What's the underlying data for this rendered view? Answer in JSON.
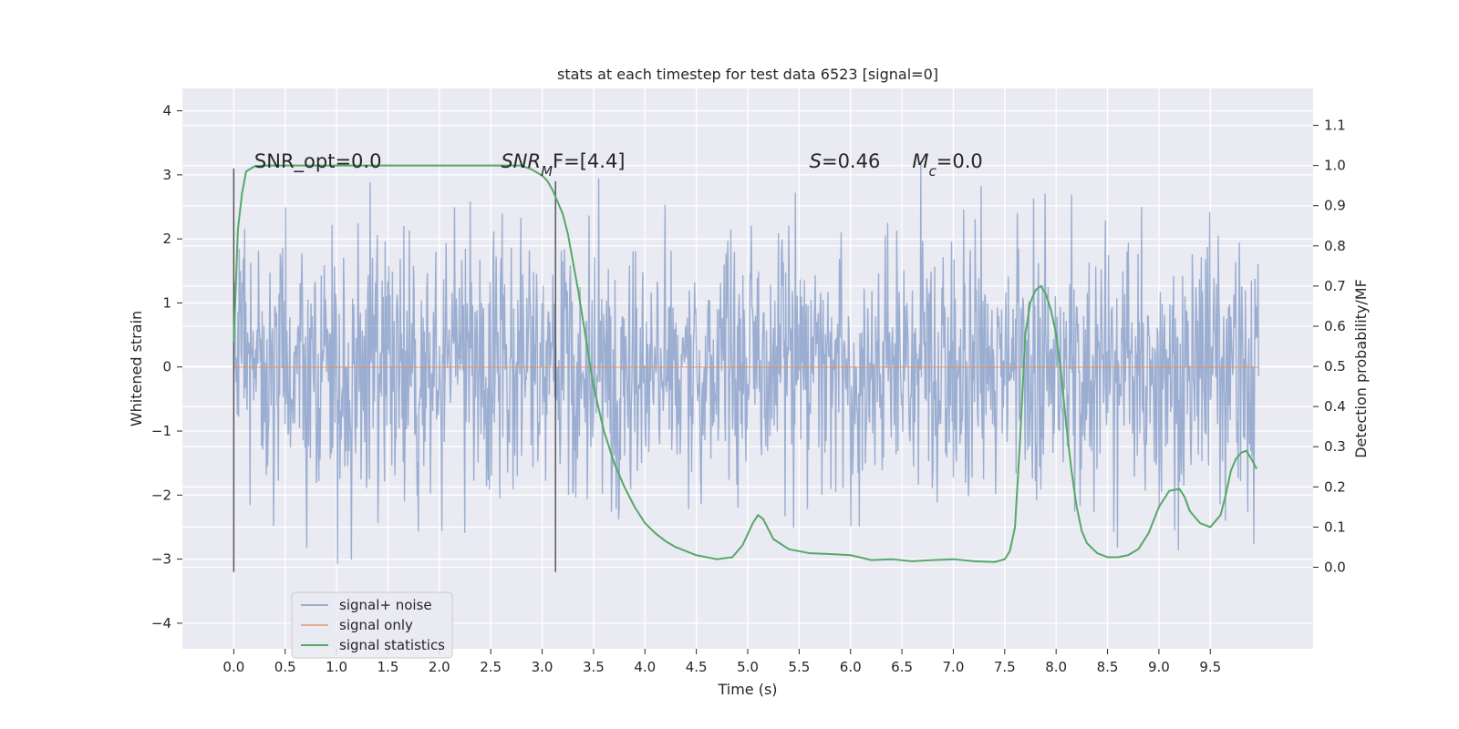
{
  "chart_data": {
    "type": "line",
    "title": "stats at each timestep for test data 6523 [signal=0]",
    "xlabel": "Time (s)",
    "ylabel": "Whitened strain",
    "y2label": "Detection probability/MF",
    "xlim": [
      -0.5,
      10.5
    ],
    "ylim": [
      -4.4,
      4.35
    ],
    "y2lim": [
      -0.203,
      1.192
    ],
    "x_ticks": [
      0.0,
      0.5,
      1.0,
      1.5,
      2.0,
      2.5,
      3.0,
      3.5,
      4.0,
      4.5,
      5.0,
      5.5,
      6.0,
      6.5,
      7.0,
      7.5,
      8.0,
      8.5,
      9.0,
      9.5
    ],
    "x_tick_labels": [
      "0.0",
      "0.5",
      "1.0",
      "1.5",
      "2.0",
      "2.5",
      "3.0",
      "3.5",
      "4.0",
      "4.5",
      "5.0",
      "5.5",
      "6.0",
      "6.5",
      "7.0",
      "7.5",
      "8.0",
      "8.5",
      "9.0",
      "9.5"
    ],
    "y_ticks": [
      -4,
      -3,
      -2,
      -1,
      0,
      1,
      2,
      3,
      4
    ],
    "y_tick_labels": [
      "−4",
      "−3",
      "−2",
      "−1",
      "0",
      "1",
      "2",
      "3",
      "4"
    ],
    "y2_ticks": [
      0.0,
      0.1,
      0.2,
      0.3,
      0.4,
      0.5,
      0.6,
      0.7,
      0.8,
      0.9,
      1.0,
      1.1
    ],
    "y2_tick_labels": [
      "0.0",
      "0.1",
      "0.2",
      "0.3",
      "0.4",
      "0.5",
      "0.6",
      "0.7",
      "0.8",
      "0.9",
      "1.0",
      "1.1"
    ],
    "grid": true,
    "legend_position": "lower-left",
    "colors": {
      "background": "#eaeaf2",
      "grid": "#ffffff",
      "noise": "#4c72b0",
      "signal": "#dd8452",
      "stats": "#55a868",
      "vline": "#4d4d4d"
    },
    "annotations": [
      {
        "text": "SNR_opt=0.0",
        "x": 0.2,
        "y2": 0.995
      },
      {
        "text": "SNR",
        "sub": "M",
        "suffix": "F=[4.4]",
        "italic": true,
        "x": 2.6,
        "y2": 0.995
      },
      {
        "text": "S",
        "suffix": "=0.46",
        "italic": true,
        "x": 5.6,
        "y2": 0.995
      },
      {
        "text": "M",
        "sub": "c",
        "suffix": "=0.0",
        "italic": true,
        "x": 6.6,
        "y2": 0.995
      }
    ],
    "vlines": [
      {
        "x": 0.0,
        "y": [
          -3.2,
          3.1
        ]
      },
      {
        "x": 3.13,
        "y": [
          -3.2,
          2.9
        ]
      }
    ],
    "series": [
      {
        "name": "signal+ noise",
        "kind": "noise",
        "x_range": [
          0.0,
          9.97
        ],
        "samples": 1700,
        "seed": 6523,
        "sigma": 1.0,
        "clip": [
          -4.05,
          3.95
        ]
      },
      {
        "name": "signal only",
        "kind": "flat",
        "x": [
          0.0,
          9.97
        ],
        "y": [
          0.0,
          0.0
        ]
      },
      {
        "name": "signal statistics",
        "kind": "stats",
        "axis": "right",
        "x": [
          0.0,
          0.04,
          0.08,
          0.12,
          0.2,
          0.3,
          0.5,
          1.0,
          1.5,
          2.0,
          2.5,
          2.8,
          2.9,
          3.0,
          3.05,
          3.1,
          3.15,
          3.2,
          3.25,
          3.3,
          3.35,
          3.4,
          3.5,
          3.6,
          3.7,
          3.8,
          3.9,
          4.0,
          4.1,
          4.2,
          4.3,
          4.5,
          4.7,
          4.85,
          4.95,
          5.05,
          5.1,
          5.15,
          5.25,
          5.4,
          5.6,
          5.8,
          6.0,
          6.2,
          6.4,
          6.6,
          6.8,
          7.0,
          7.2,
          7.4,
          7.5,
          7.55,
          7.6,
          7.65,
          7.7,
          7.75,
          7.8,
          7.85,
          7.9,
          7.95,
          8.0,
          8.05,
          8.1,
          8.15,
          8.2,
          8.25,
          8.3,
          8.4,
          8.5,
          8.6,
          8.7,
          8.8,
          8.9,
          9.0,
          9.1,
          9.2,
          9.25,
          9.3,
          9.4,
          9.5,
          9.6,
          9.65,
          9.7,
          9.75,
          9.8,
          9.85,
          9.9,
          9.95
        ],
        "y": [
          0.56,
          0.84,
          0.93,
          0.985,
          0.998,
          1.0,
          1.0,
          1.0,
          1.0,
          1.0,
          1.0,
          1.0,
          0.99,
          0.975,
          0.962,
          0.94,
          0.91,
          0.88,
          0.83,
          0.76,
          0.69,
          0.61,
          0.45,
          0.34,
          0.26,
          0.2,
          0.15,
          0.11,
          0.085,
          0.065,
          0.05,
          0.03,
          0.02,
          0.025,
          0.055,
          0.11,
          0.13,
          0.12,
          0.07,
          0.045,
          0.035,
          0.033,
          0.03,
          0.018,
          0.02,
          0.015,
          0.018,
          0.02,
          0.015,
          0.013,
          0.02,
          0.04,
          0.1,
          0.32,
          0.58,
          0.66,
          0.69,
          0.7,
          0.68,
          0.64,
          0.58,
          0.48,
          0.35,
          0.24,
          0.15,
          0.09,
          0.06,
          0.035,
          0.025,
          0.025,
          0.03,
          0.045,
          0.085,
          0.15,
          0.19,
          0.195,
          0.175,
          0.14,
          0.11,
          0.1,
          0.13,
          0.18,
          0.24,
          0.27,
          0.285,
          0.29,
          0.27,
          0.245
        ]
      }
    ]
  }
}
